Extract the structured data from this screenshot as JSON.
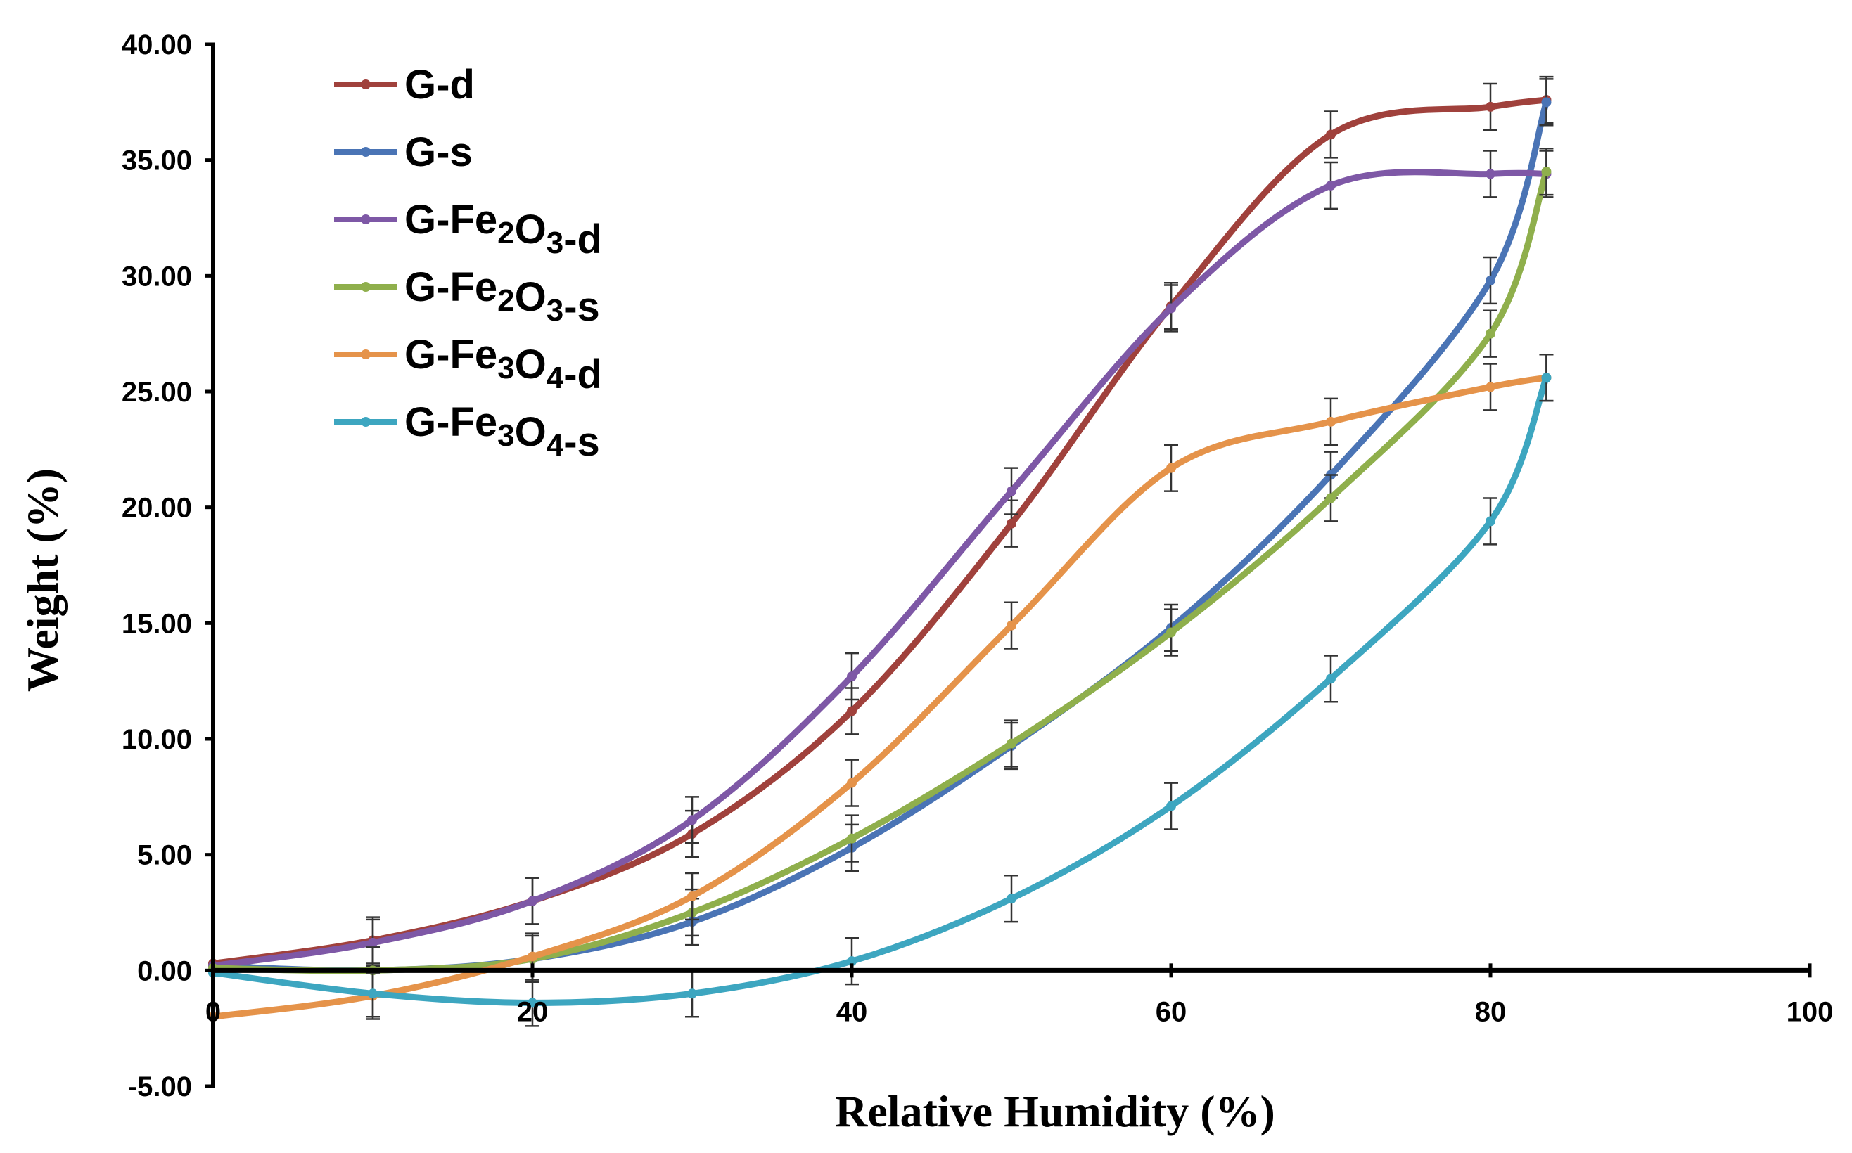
{
  "chart_data": {
    "type": "line",
    "title": "",
    "xlabel": "Relative Humidity (%)",
    "ylabel": "Weight (%)",
    "xlim": [
      0,
      100
    ],
    "ylim": [
      -5,
      40
    ],
    "x_ticks": [
      "20",
      "40",
      "60",
      "80",
      "100"
    ],
    "x_origin_label": "0",
    "y_ticks": [
      "-5.00",
      "0.00",
      "5.00",
      "10.00",
      "15.00",
      "20.00",
      "25.00",
      "30.00",
      "35.00",
      "40.00"
    ],
    "grid": false,
    "legend_position": "top-left",
    "x": [
      0,
      10,
      20,
      30,
      40,
      50,
      60,
      70,
      80,
      83.5
    ],
    "series": [
      {
        "name": "G-d",
        "legend": {
          "base": "G",
          "parts": [
            [
              "-d",
              ""
            ]
          ]
        },
        "color": "#a0413c",
        "values": [
          0.3,
          1.3,
          3.0,
          5.9,
          11.2,
          19.3,
          28.7,
          36.1,
          37.3,
          37.6
        ],
        "error": 1.0
      },
      {
        "name": "G-s",
        "legend": {
          "base": "G",
          "parts": [
            [
              "-s",
              ""
            ]
          ]
        },
        "color": "#4a74b5",
        "values": [
          0.2,
          0.0,
          0.5,
          2.1,
          5.3,
          9.7,
          14.8,
          21.4,
          29.8,
          37.5
        ],
        "error": 1.0
      },
      {
        "name": "G-Fe2O3-d",
        "legend": {
          "base": "G",
          "parts": [
            [
              "-Fe",
              "2"
            ],
            [
              "O",
              "3"
            ],
            [
              "-d",
              ""
            ]
          ]
        },
        "color": "#7e58a6",
        "values": [
          0.2,
          1.2,
          3.0,
          6.5,
          12.7,
          20.7,
          28.6,
          33.9,
          34.4,
          34.4
        ],
        "error": 1.0
      },
      {
        "name": "G-Fe2O3-s",
        "legend": {
          "base": "G",
          "parts": [
            [
              "-Fe",
              "2"
            ],
            [
              "O",
              "3"
            ],
            [
              "-s",
              ""
            ]
          ]
        },
        "color": "#8faf4c",
        "values": [
          0.1,
          0.0,
          0.5,
          2.5,
          5.7,
          9.8,
          14.6,
          20.4,
          27.5,
          34.5
        ],
        "error": 1.0
      },
      {
        "name": "G-Fe3O4-d",
        "legend": {
          "base": "G",
          "parts": [
            [
              "-Fe",
              "3"
            ],
            [
              "O",
              "4"
            ],
            [
              "-d",
              ""
            ]
          ]
        },
        "color": "#e5934a",
        "values": [
          -2.0,
          -1.1,
          0.6,
          3.2,
          8.1,
          14.9,
          21.7,
          23.7,
          25.2,
          25.6
        ],
        "error": 1.0
      },
      {
        "name": "G-Fe3O4-s",
        "legend": {
          "base": "G",
          "parts": [
            [
              "-Fe",
              "3"
            ],
            [
              "O",
              "4"
            ],
            [
              "-s",
              ""
            ]
          ]
        },
        "color": "#3da6c0",
        "values": [
          -0.1,
          -1.0,
          -1.4,
          -1.0,
          0.4,
          3.1,
          7.1,
          12.6,
          19.4,
          25.6
        ],
        "error": 1.0
      }
    ]
  }
}
